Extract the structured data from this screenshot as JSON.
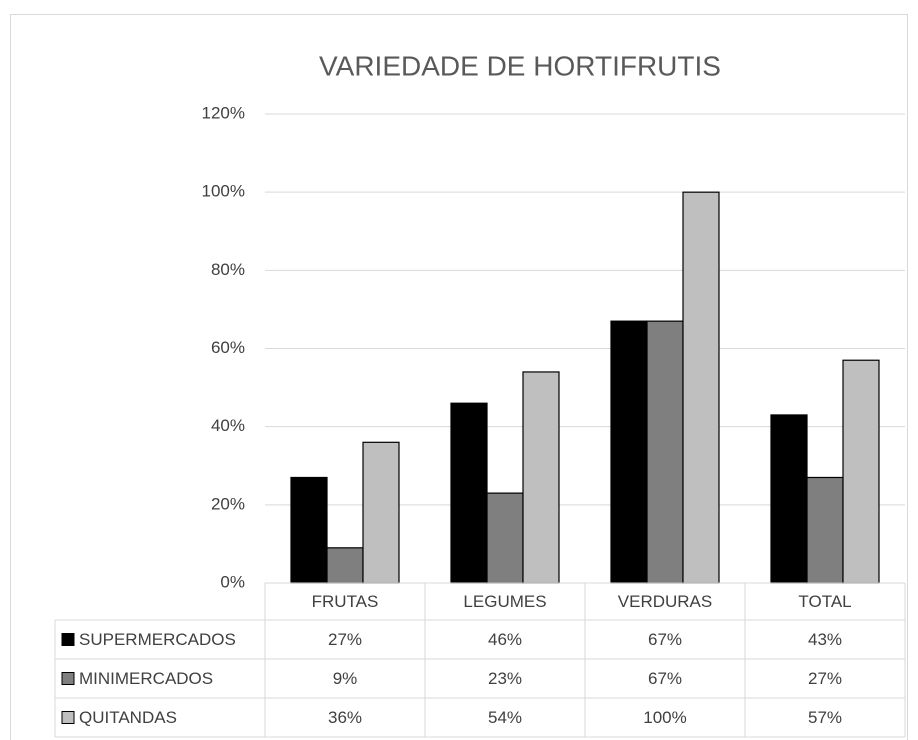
{
  "chart_data": {
    "type": "bar",
    "title": "VARIEDADE DE HORTIFRUTIS",
    "categories": [
      "FRUTAS",
      "LEGUMES",
      "VERDURAS",
      "TOTAL"
    ],
    "series": [
      {
        "name": "SUPERMERCADOS",
        "color": "#000000",
        "values": [
          27,
          46,
          67,
          43
        ],
        "value_labels": [
          "27%",
          "46%",
          "67%",
          "43%"
        ]
      },
      {
        "name": "MINIMERCADOS",
        "color": "#7f7f7f",
        "values": [
          9,
          23,
          67,
          27
        ],
        "value_labels": [
          "9%",
          "23%",
          "67%",
          "27%"
        ]
      },
      {
        "name": "QUITANDAS",
        "color": "#bfbfbf",
        "values": [
          36,
          54,
          100,
          57
        ],
        "value_labels": [
          "36%",
          "54%",
          "100%",
          "57%"
        ]
      }
    ],
    "ylim": [
      0,
      120
    ],
    "yticks": [
      {
        "value": 0,
        "label": "0%"
      },
      {
        "value": 20,
        "label": "20%"
      },
      {
        "value": 40,
        "label": "40%"
      },
      {
        "value": 60,
        "label": "60%"
      },
      {
        "value": 80,
        "label": "80%"
      },
      {
        "value": 100,
        "label": "100%"
      },
      {
        "value": 120,
        "label": "120%"
      }
    ],
    "grid": true
  }
}
